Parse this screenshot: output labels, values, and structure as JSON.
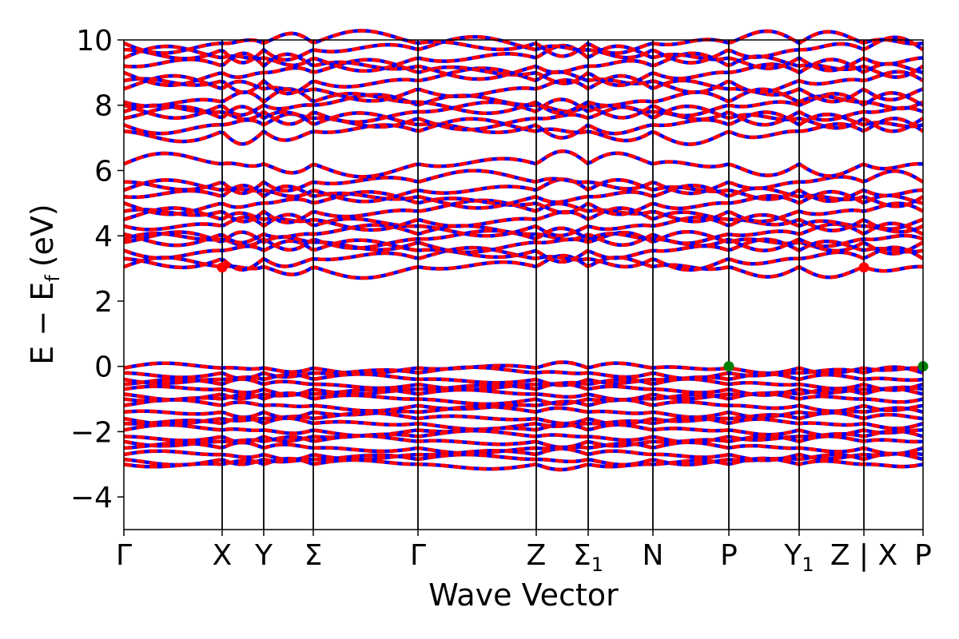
{
  "chart_data": {
    "type": "line",
    "xlabel": "Wave Vector",
    "ylabel": "E − E",
    "ylabel_sub": "f",
    "ylabel_unit": "(eV)",
    "ylim": [
      -5,
      10
    ],
    "yticks": [
      -4,
      -2,
      0,
      2,
      4,
      6,
      8,
      10
    ],
    "ytick_labels": [
      "−4",
      "−2",
      "0",
      "2",
      "4",
      "6",
      "8",
      "10"
    ],
    "x_range": [
      0,
      1000
    ],
    "kpoints": [
      {
        "label": "Γ",
        "x": 0
      },
      {
        "label": "X",
        "x": 123
      },
      {
        "label": "Y",
        "x": 175
      },
      {
        "label": "Σ",
        "x": 237
      },
      {
        "label": "Γ",
        "x": 368
      },
      {
        "label": "Z",
        "x": 516
      },
      {
        "label": "Σ",
        "sub": "1",
        "x": 581
      },
      {
        "label": "N",
        "x": 662
      },
      {
        "label": "P",
        "x": 757
      },
      {
        "label": "Y",
        "sub": "1",
        "x": 845
      },
      {
        "label": "Z | X",
        "x": 926
      },
      {
        "label": "P",
        "x": 1000
      }
    ],
    "band_colors": {
      "spin_up": "#ff0000",
      "spin_down": "#0000ff"
    },
    "bands_conduction_edge": [
      3.05,
      3.3,
      3.55,
      3.8,
      3.9,
      4.05,
      4.3,
      4.5,
      4.75,
      5.0,
      5.2,
      5.4,
      5.65
    ],
    "bands_upper": [
      6.2,
      7.2,
      7.4,
      7.6,
      7.8,
      8.0,
      8.1,
      8.5,
      8.75,
      9.0,
      9.2,
      9.45,
      9.7,
      9.9
    ],
    "bands_valence": [
      -0.05,
      -0.2,
      -0.4,
      -0.55,
      -0.7,
      -0.85,
      -1.0,
      -1.2,
      -1.4,
      -1.6,
      -1.75,
      -1.95,
      -2.15,
      -2.3,
      -2.5,
      -2.7,
      -2.85,
      -3.0
    ],
    "markers": [
      {
        "x": 123,
        "y": 3.03,
        "color": "#ff0000",
        "kind": "CBM"
      },
      {
        "x": 926,
        "y": 3.03,
        "color": "#ff0000",
        "kind": "CBM"
      },
      {
        "x": 757,
        "y": 0.0,
        "color": "#008000",
        "kind": "VBM"
      },
      {
        "x": 1000,
        "y": 0.0,
        "color": "#008000",
        "kind": "VBM"
      }
    ],
    "grid": false
  }
}
